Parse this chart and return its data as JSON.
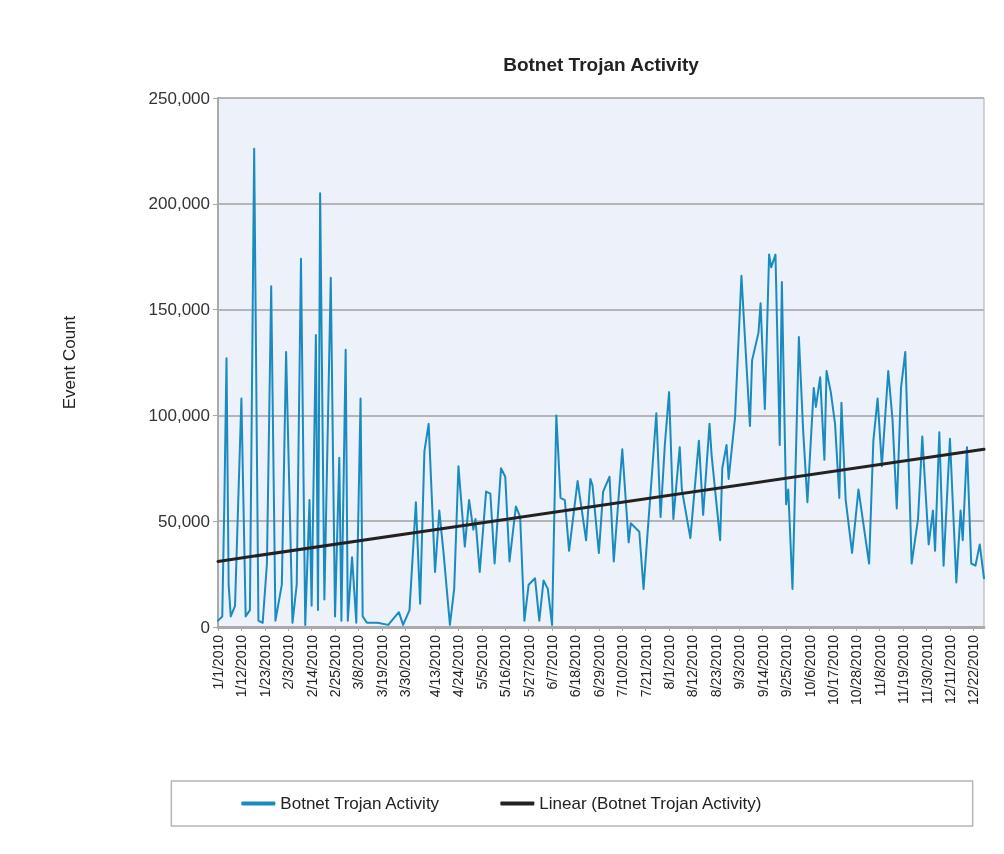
{
  "chart_data": {
    "type": "line",
    "title": "Botnet Trojan Activity",
    "ylabel": "Event Count",
    "x": [
      "2010-01-01",
      "2010-01-03",
      "2010-01-04",
      "2010-01-05",
      "2010-01-06",
      "2010-01-07",
      "2010-01-09",
      "2010-01-12",
      "2010-01-14",
      "2010-01-16",
      "2010-01-18",
      "2010-01-20",
      "2010-01-22",
      "2010-01-24",
      "2010-01-26",
      "2010-01-28",
      "2010-01-31",
      "2010-02-02",
      "2010-02-05",
      "2010-02-07",
      "2010-02-09",
      "2010-02-11",
      "2010-02-13",
      "2010-02-14",
      "2010-02-16",
      "2010-02-17",
      "2010-02-18",
      "2010-02-20",
      "2010-02-23",
      "2010-02-25",
      "2010-02-27",
      "2010-02-28",
      "2010-03-02",
      "2010-03-03",
      "2010-03-05",
      "2010-03-07",
      "2010-03-09",
      "2010-03-10",
      "2010-03-12",
      "2010-03-17",
      "2010-03-22",
      "2010-03-27",
      "2010-03-29",
      "2010-04-01",
      "2010-04-04",
      "2010-04-06",
      "2010-04-08",
      "2010-04-10",
      "2010-04-13",
      "2010-04-15",
      "2010-04-17",
      "2010-04-20",
      "2010-04-22",
      "2010-04-24",
      "2010-04-27",
      "2010-04-29",
      "2010-05-01",
      "2010-05-02",
      "2010-05-04",
      "2010-05-07",
      "2010-05-09",
      "2010-05-11",
      "2010-05-14",
      "2010-05-16",
      "2010-05-18",
      "2010-05-21",
      "2010-05-23",
      "2010-05-25",
      "2010-05-27",
      "2010-05-30",
      "2010-06-01",
      "2010-06-03",
      "2010-06-05",
      "2010-06-07",
      "2010-06-09",
      "2010-06-11",
      "2010-06-13",
      "2010-06-15",
      "2010-06-19",
      "2010-06-23",
      "2010-06-25",
      "2010-06-26",
      "2010-06-29",
      "2010-07-01",
      "2010-07-04",
      "2010-07-06",
      "2010-07-10",
      "2010-07-13",
      "2010-07-14",
      "2010-07-18",
      "2010-07-20",
      "2010-07-22",
      "2010-07-24",
      "2010-07-26",
      "2010-07-28",
      "2010-07-30",
      "2010-08-01",
      "2010-08-03",
      "2010-08-06",
      "2010-08-07",
      "2010-08-11",
      "2010-08-15",
      "2010-08-17",
      "2010-08-20",
      "2010-08-21",
      "2010-08-25",
      "2010-08-26",
      "2010-08-28",
      "2010-08-29",
      "2010-09-01",
      "2010-09-04",
      "2010-09-08",
      "2010-09-09",
      "2010-09-12",
      "2010-09-13",
      "2010-09-15",
      "2010-09-17",
      "2010-09-18",
      "2010-09-20",
      "2010-09-22",
      "2010-09-23",
      "2010-09-25",
      "2010-09-26",
      "2010-09-28",
      "2010-10-01",
      "2010-10-03",
      "2010-10-05",
      "2010-10-08",
      "2010-10-09",
      "2010-10-11",
      "2010-10-13",
      "2010-10-14",
      "2010-10-16",
      "2010-10-18",
      "2010-10-20",
      "2010-10-21",
      "2010-10-23",
      "2010-10-26",
      "2010-10-29",
      "2010-11-03",
      "2010-11-05",
      "2010-11-07",
      "2010-11-09",
      "2010-11-12",
      "2010-11-14",
      "2010-11-16",
      "2010-11-18",
      "2010-11-20",
      "2010-11-23",
      "2010-11-26",
      "2010-11-28",
      "2010-12-01",
      "2010-12-03",
      "2010-12-04",
      "2010-12-06",
      "2010-12-08",
      "2010-12-11",
      "2010-12-14",
      "2010-12-16",
      "2010-12-17",
      "2010-12-19",
      "2010-12-21",
      "2010-12-23",
      "2010-12-25",
      "2010-12-27"
    ],
    "series": [
      {
        "name": "Botnet Trojan Activity",
        "color": "#1a8bc0",
        "values": [
          3000,
          5000,
          60000,
          127000,
          20000,
          5000,
          10000,
          108000,
          5000,
          8000,
          226000,
          3000,
          2000,
          30000,
          161000,
          3000,
          20000,
          130000,
          2000,
          20000,
          174000,
          1000,
          60000,
          10000,
          138000,
          8000,
          205000,
          13000,
          165000,
          5000,
          80000,
          3000,
          131000,
          3000,
          33000,
          2000,
          108000,
          5000,
          2000,
          2000,
          1000,
          7000,
          1000,
          8000,
          59000,
          11000,
          83000,
          96000,
          26000,
          55000,
          35000,
          1000,
          18000,
          76000,
          38000,
          60000,
          46000,
          51000,
          26000,
          64000,
          63000,
          30000,
          75000,
          71000,
          31000,
          57000,
          52000,
          3000,
          20000,
          23000,
          3000,
          22000,
          18000,
          1000,
          100000,
          61000,
          60000,
          36000,
          69000,
          41000,
          70000,
          67000,
          35000,
          64000,
          71000,
          31000,
          84000,
          40000,
          49000,
          45000,
          18000,
          46000,
          73000,
          101000,
          52000,
          86000,
          111000,
          51000,
          85000,
          65000,
          42000,
          88000,
          53000,
          96000,
          81000,
          41000,
          75000,
          86000,
          70000,
          99000,
          166000,
          95000,
          126000,
          139000,
          153000,
          103000,
          176000,
          170000,
          176000,
          86000,
          163000,
          58000,
          65000,
          18000,
          137000,
          93000,
          59000,
          113000,
          104000,
          118000,
          79000,
          121000,
          111000,
          96000,
          61000,
          106000,
          60000,
          35000,
          65000,
          30000,
          88000,
          108000,
          76000,
          121000,
          98000,
          56000,
          113000,
          130000,
          30000,
          51000,
          90000,
          39000,
          55000,
          36000,
          92000,
          29000,
          89000,
          21000,
          55000,
          41000,
          85000,
          30000,
          29000,
          39000,
          23000
        ]
      },
      {
        "name": "Linear (Botnet Trojan Activity)",
        "color": "#222222",
        "x": [
          "2010-01-01",
          "2010-12-27"
        ],
        "values": [
          31000,
          84000
        ]
      }
    ],
    "xlim": [
      "2010-01-01",
      "2010-12-27"
    ],
    "xticks": [
      {
        "value": "2010-01-01",
        "label": "1/1/2010"
      },
      {
        "value": "2010-01-12",
        "label": "1/12/2010"
      },
      {
        "value": "2010-01-23",
        "label": "1/23/2010"
      },
      {
        "value": "2010-02-03",
        "label": "2/3/2010"
      },
      {
        "value": "2010-02-14",
        "label": "2/14/2010"
      },
      {
        "value": "2010-02-25",
        "label": "2/25/2010"
      },
      {
        "value": "2010-03-08",
        "label": "3/8/2010"
      },
      {
        "value": "2010-03-19",
        "label": "3/19/2010"
      },
      {
        "value": "2010-03-30",
        "label": "3/30/2010"
      },
      {
        "value": "2010-04-13",
        "label": "4/13/2010"
      },
      {
        "value": "2010-04-24",
        "label": "4/24/2010"
      },
      {
        "value": "2010-05-05",
        "label": "5/5/2010"
      },
      {
        "value": "2010-05-16",
        "label": "5/16/2010"
      },
      {
        "value": "2010-05-27",
        "label": "5/27/2010"
      },
      {
        "value": "2010-06-07",
        "label": "6/7/2010"
      },
      {
        "value": "2010-06-18",
        "label": "6/18/2010"
      },
      {
        "value": "2010-06-29",
        "label": "6/29/2010"
      },
      {
        "value": "2010-07-10",
        "label": "7/10/2010"
      },
      {
        "value": "2010-07-21",
        "label": "7/21/2010"
      },
      {
        "value": "2010-08-01",
        "label": "8/1/2010"
      },
      {
        "value": "2010-08-12",
        "label": "8/12/2010"
      },
      {
        "value": "2010-08-23",
        "label": "8/23/2010"
      },
      {
        "value": "2010-09-03",
        "label": "9/3/2010"
      },
      {
        "value": "2010-09-14",
        "label": "9/14/2010"
      },
      {
        "value": "2010-09-25",
        "label": "9/25/2010"
      },
      {
        "value": "2010-10-06",
        "label": "10/6/2010"
      },
      {
        "value": "2010-10-17",
        "label": "10/17/2010"
      },
      {
        "value": "2010-10-28",
        "label": "10/28/2010"
      },
      {
        "value": "2010-11-08",
        "label": "11/8/2010"
      },
      {
        "value": "2010-11-19",
        "label": "11/19/2010"
      },
      {
        "value": "2010-11-30",
        "label": "11/30/2010"
      },
      {
        "value": "2010-12-11",
        "label": "12/11/2010"
      },
      {
        "value": "2010-12-22",
        "label": "12/22/2010"
      }
    ],
    "ylim": [
      0,
      250000
    ],
    "yticks": [
      {
        "value": 0,
        "label": "0"
      },
      {
        "value": 50000,
        "label": "50,000"
      },
      {
        "value": 100000,
        "label": "100,000"
      },
      {
        "value": 150000,
        "label": "150,000"
      },
      {
        "value": 200000,
        "label": "200,000"
      },
      {
        "value": 250000,
        "label": "250,000"
      }
    ],
    "grid": "y",
    "legend": "bottom",
    "marker": "none",
    "line_style": "solid"
  }
}
